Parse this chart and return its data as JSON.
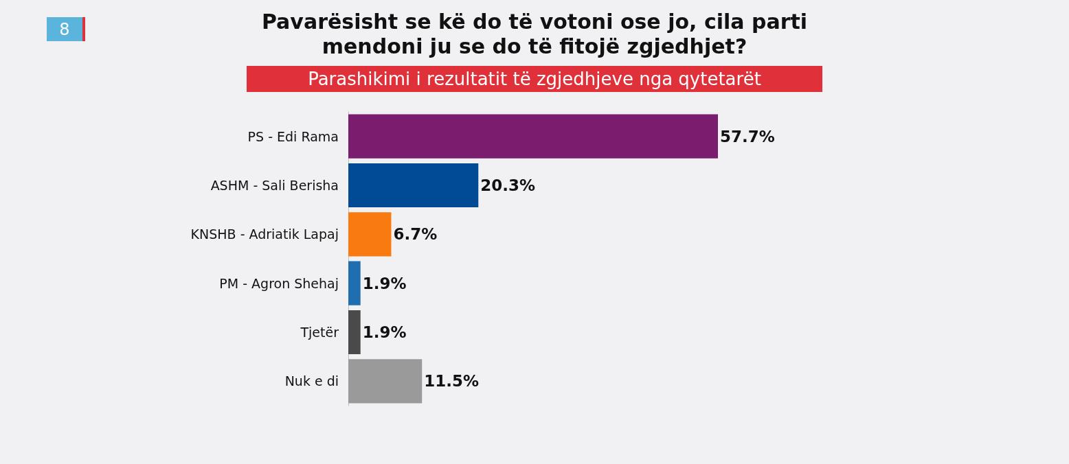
{
  "chart_data": {
    "type": "bar",
    "orientation": "horizontal",
    "title": "Pavarësisht se kë do të votoni ose jo, cila parti\nmendoni ju se do të fitojë zgjedhjet?",
    "subtitle": "Parashikimi i rezultatit të zgjedhjeve nga qytetarët",
    "annotations": [
      "8"
    ],
    "categories": [
      "PS - Edi Rama",
      "ASHM - Sali Berisha",
      "KNSHB - Adriatik Lapaj",
      "PM - Agron Shehaj",
      "Tjetër",
      "Nuk e di"
    ],
    "values": [
      57.7,
      20.3,
      6.7,
      1.9,
      1.9,
      11.5
    ],
    "colors": [
      "#7b1d6e",
      "#004b93",
      "#f97a10",
      "#1f6fb0",
      "#4a4a4a",
      "#9a9a9a"
    ],
    "value_labels": [
      "57.7%",
      "20.3%",
      "6.7%",
      "1.9%",
      "1.9%",
      "11.5%"
    ]
  }
}
